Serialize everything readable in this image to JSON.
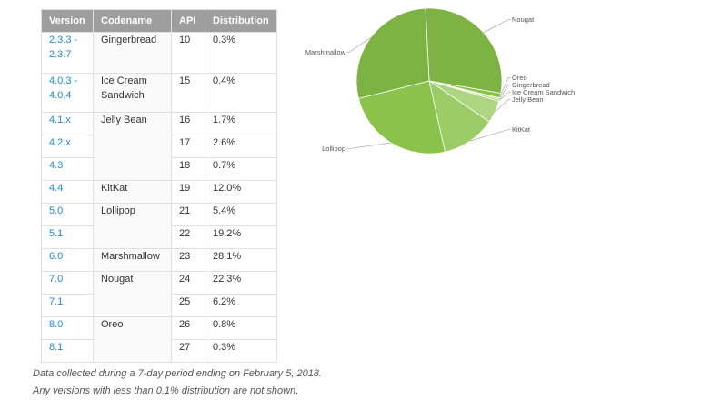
{
  "table": {
    "headers": [
      "Version",
      "Codename",
      "API",
      "Distribution"
    ],
    "rows": [
      {
        "version": "2.3.3 - 2.3.7",
        "codename": "Gingerbread",
        "api": "10",
        "dist": "0.3%"
      },
      {
        "version": "4.0.3 - 4.0.4",
        "codename": "Ice Cream Sandwich",
        "api": "15",
        "dist": "0.4%"
      },
      {
        "version": "4.1.x",
        "codename": "Jelly Bean",
        "api": "16",
        "dist": "1.7%"
      },
      {
        "version": "4.2.x",
        "codename": "",
        "api": "17",
        "dist": "2.6%"
      },
      {
        "version": "4.3",
        "codename": "",
        "api": "18",
        "dist": "0.7%"
      },
      {
        "version": "4.4",
        "codename": "KitKat",
        "api": "19",
        "dist": "12.0%"
      },
      {
        "version": "5.0",
        "codename": "Lollipop",
        "api": "21",
        "dist": "5.4%"
      },
      {
        "version": "5.1",
        "codename": "",
        "api": "22",
        "dist": "19.2%"
      },
      {
        "version": "6.0",
        "codename": "Marshmallow",
        "api": "23",
        "dist": "28.1%"
      },
      {
        "version": "7.0",
        "codename": "Nougat",
        "api": "24",
        "dist": "22.3%"
      },
      {
        "version": "7.1",
        "codename": "",
        "api": "25",
        "dist": "6.2%"
      },
      {
        "version": "8.0",
        "codename": "Oreo",
        "api": "26",
        "dist": "0.8%"
      },
      {
        "version": "8.1",
        "codename": "",
        "api": "27",
        "dist": "0.3%"
      }
    ]
  },
  "footnote": {
    "line1": "Data collected during a 7-day period ending on February 5, 2018.",
    "line2": "Any versions with less than 0.1% distribution are not shown."
  },
  "chart_data": {
    "type": "pie",
    "title": "",
    "slices": [
      {
        "label": "Nougat",
        "value": 28.5,
        "color": "#7cb342"
      },
      {
        "label": "Oreo",
        "value": 1.1,
        "color": "#8bc34a"
      },
      {
        "label": "Gingerbread",
        "value": 0.3,
        "color": "#9ccc65"
      },
      {
        "label": "Ice Cream Sandwich",
        "value": 0.4,
        "color": "#a5d46a"
      },
      {
        "label": "Jelly Bean",
        "value": 5.0,
        "color": "#aed581"
      },
      {
        "label": "KitKat",
        "value": 12.0,
        "color": "#9ccc65"
      },
      {
        "label": "Lollipop",
        "value": 24.6,
        "color": "#8bc34a"
      },
      {
        "label": "Marshmallow",
        "value": 28.1,
        "color": "#7cb342"
      }
    ]
  }
}
